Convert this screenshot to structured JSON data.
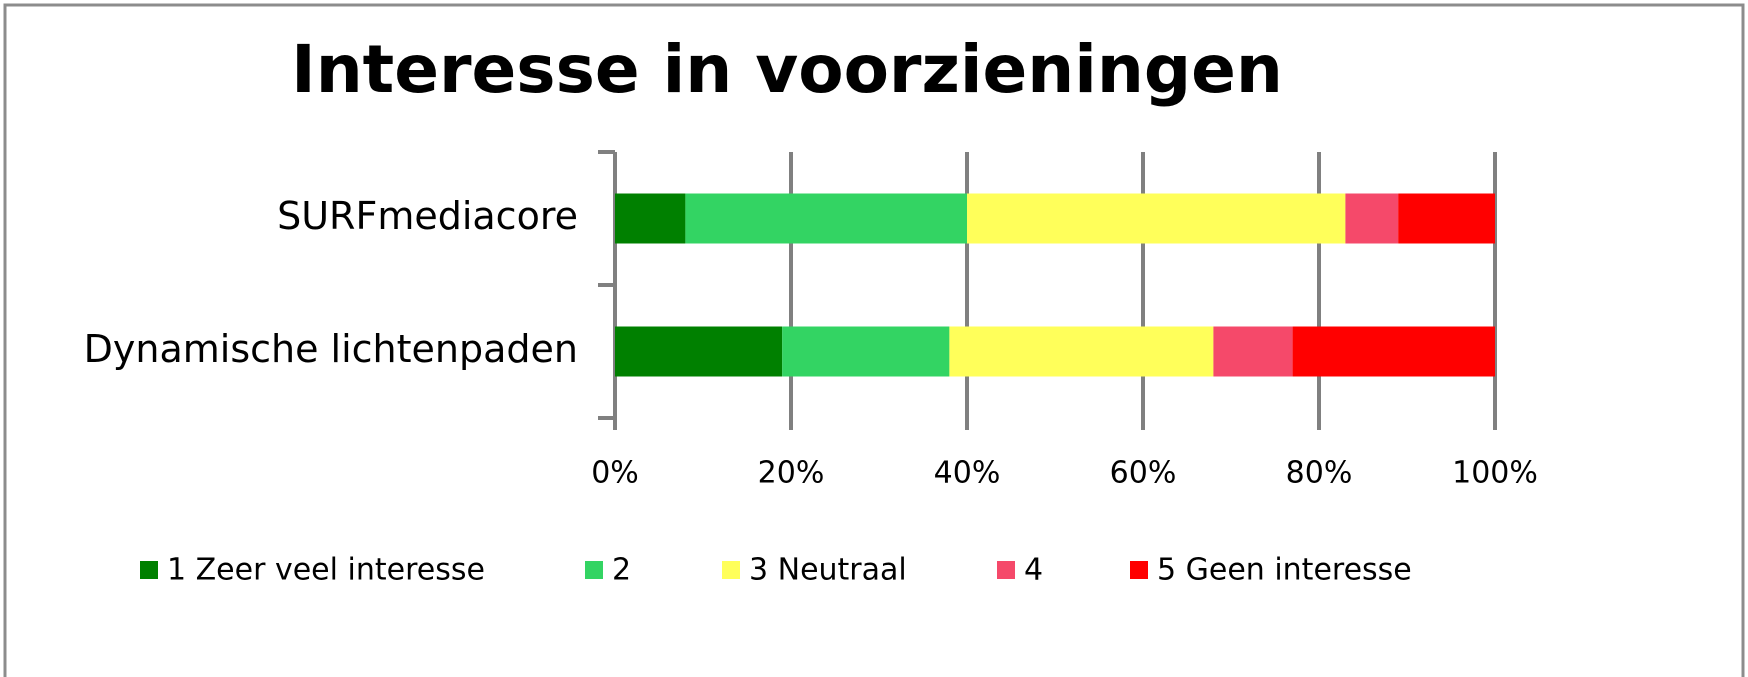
{
  "chart_data": {
    "type": "stacked-bar-horizontal",
    "title": "Interesse in voorzieningen",
    "categories": [
      "SURFmediacore",
      "Dynamische lichtenpaden"
    ],
    "series": [
      {
        "name": "1 Zeer veel interesse",
        "color": "#008000",
        "values": [
          8,
          19
        ]
      },
      {
        "name": "2",
        "color": "#33d463",
        "values": [
          32,
          19
        ]
      },
      {
        "name": "3 Neutraal",
        "color": "#ffff5a",
        "values": [
          43,
          30
        ]
      },
      {
        "name": "4",
        "color": "#f5496a",
        "values": [
          6,
          9
        ]
      },
      {
        "name": "5 Geen interesse",
        "color": "#ff0000",
        "values": [
          11,
          23
        ]
      }
    ],
    "xlim": [
      0,
      100
    ],
    "xticks": [
      {
        "value": 0,
        "label": "0%"
      },
      {
        "value": 20,
        "label": "20%"
      },
      {
        "value": 40,
        "label": "40%"
      },
      {
        "value": 60,
        "label": "60%"
      },
      {
        "value": 80,
        "label": "80%"
      },
      {
        "value": 100,
        "label": "100%"
      }
    ],
    "grid": true,
    "legend": "bottom"
  }
}
